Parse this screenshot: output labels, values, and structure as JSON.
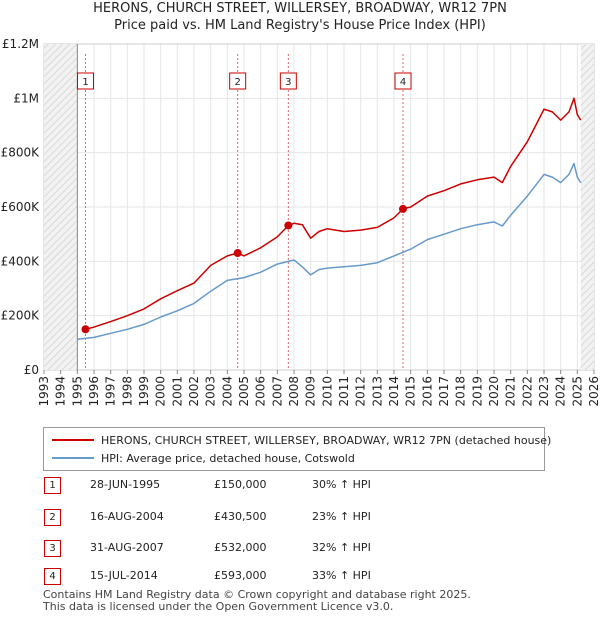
{
  "chart_data": {
    "type": "line",
    "title": "HERONS, CHURCH STREET, WILLERSEY, BROADWAY, WR12 7PN",
    "subtitle": "Price paid vs. HM Land Registry's House Price Index (HPI)",
    "xlim": [
      1993,
      2026
    ],
    "ylim": [
      0,
      1200000
    ],
    "xticks": [
      "1993",
      "1994",
      "1995",
      "1996",
      "1997",
      "1998",
      "1999",
      "2000",
      "2001",
      "2002",
      "2003",
      "2004",
      "2005",
      "2006",
      "2007",
      "2008",
      "2009",
      "2010",
      "2011",
      "2012",
      "2013",
      "2014",
      "2015",
      "2016",
      "2017",
      "2018",
      "2019",
      "2020",
      "2021",
      "2022",
      "2023",
      "2024",
      "2025",
      "2026"
    ],
    "yticks": [
      {
        "value": 0,
        "label": "£0"
      },
      {
        "value": 200000,
        "label": "£200K"
      },
      {
        "value": 400000,
        "label": "£400K"
      },
      {
        "value": 600000,
        "label": "£600K"
      },
      {
        "value": 800000,
        "label": "£800K"
      },
      {
        "value": 1000000,
        "label": "£1M"
      },
      {
        "value": 1200000,
        "label": "£1.2M"
      }
    ],
    "series": [
      {
        "name": "HERONS, CHURCH STREET, WILLERSEY, BROADWAY, WR12 7PN (detached house)",
        "color": "#cc0000",
        "x": [
          1995.49,
          1996.0,
          1997.0,
          1998.0,
          1999.0,
          2000.0,
          2001.0,
          2002.0,
          2003.0,
          2004.0,
          2004.62,
          2005.0,
          2006.0,
          2007.0,
          2007.66,
          2008.0,
          2008.5,
          2009.0,
          2009.5,
          2010.0,
          2011.0,
          2012.0,
          2013.0,
          2014.0,
          2014.54,
          2015.0,
          2016.0,
          2017.0,
          2018.0,
          2019.0,
          2020.0,
          2020.5,
          2021.0,
          2022.0,
          2022.5,
          2023.0,
          2023.5,
          2024.0,
          2024.5,
          2024.8,
          2025.0,
          2025.2
        ],
        "values": [
          150000,
          158000,
          178000,
          200000,
          225000,
          262000,
          292000,
          320000,
          385000,
          420000,
          430500,
          420000,
          450000,
          490000,
          532000,
          540000,
          535000,
          485000,
          510000,
          520000,
          510000,
          515000,
          525000,
          560000,
          593000,
          600000,
          640000,
          660000,
          685000,
          700000,
          710000,
          690000,
          750000,
          840000,
          900000,
          960000,
          950000,
          920000,
          950000,
          1000000,
          940000,
          920000
        ]
      },
      {
        "name": "HPI: Average price, detached house, Cotswold",
        "color": "#6699cc",
        "x": [
          1995.0,
          1996.0,
          1997.0,
          1998.0,
          1999.0,
          2000.0,
          2001.0,
          2002.0,
          2003.0,
          2004.0,
          2005.0,
          2006.0,
          2007.0,
          2008.0,
          2008.5,
          2009.0,
          2009.5,
          2010.0,
          2011.0,
          2012.0,
          2013.0,
          2014.0,
          2015.0,
          2016.0,
          2017.0,
          2018.0,
          2019.0,
          2020.0,
          2020.5,
          2021.0,
          2022.0,
          2022.5,
          2023.0,
          2023.5,
          2024.0,
          2024.5,
          2024.8,
          2025.0,
          2025.2
        ],
        "values": [
          113000,
          120000,
          135000,
          150000,
          168000,
          195000,
          218000,
          245000,
          290000,
          330000,
          340000,
          360000,
          390000,
          405000,
          380000,
          350000,
          370000,
          375000,
          380000,
          385000,
          395000,
          420000,
          445000,
          480000,
          500000,
          520000,
          535000,
          545000,
          530000,
          570000,
          640000,
          680000,
          720000,
          710000,
          690000,
          720000,
          760000,
          710000,
          690000
        ]
      }
    ],
    "sales": [
      {
        "label": "1",
        "x": 1995.49,
        "value": 150000,
        "date": "28-JUN-1995",
        "price": "£150,000",
        "hpi": "30% ↑ HPI"
      },
      {
        "label": "2",
        "x": 2004.62,
        "value": 430500,
        "date": "16-AUG-2004",
        "price": "£430,500",
        "hpi": "23% ↑ HPI"
      },
      {
        "label": "3",
        "x": 2007.66,
        "value": 532000,
        "date": "31-AUG-2007",
        "price": "£532,000",
        "hpi": "32% ↑ HPI"
      },
      {
        "label": "4",
        "x": 2014.54,
        "value": 593000,
        "date": "15-JUL-2014",
        "price": "£593,000",
        "hpi": "33% ↑ HPI"
      }
    ]
  },
  "footer": {
    "line1": "Contains HM Land Registry data © Crown copyright and database right 2025.",
    "line2": "This data is licensed under the Open Government Licence v3.0."
  }
}
